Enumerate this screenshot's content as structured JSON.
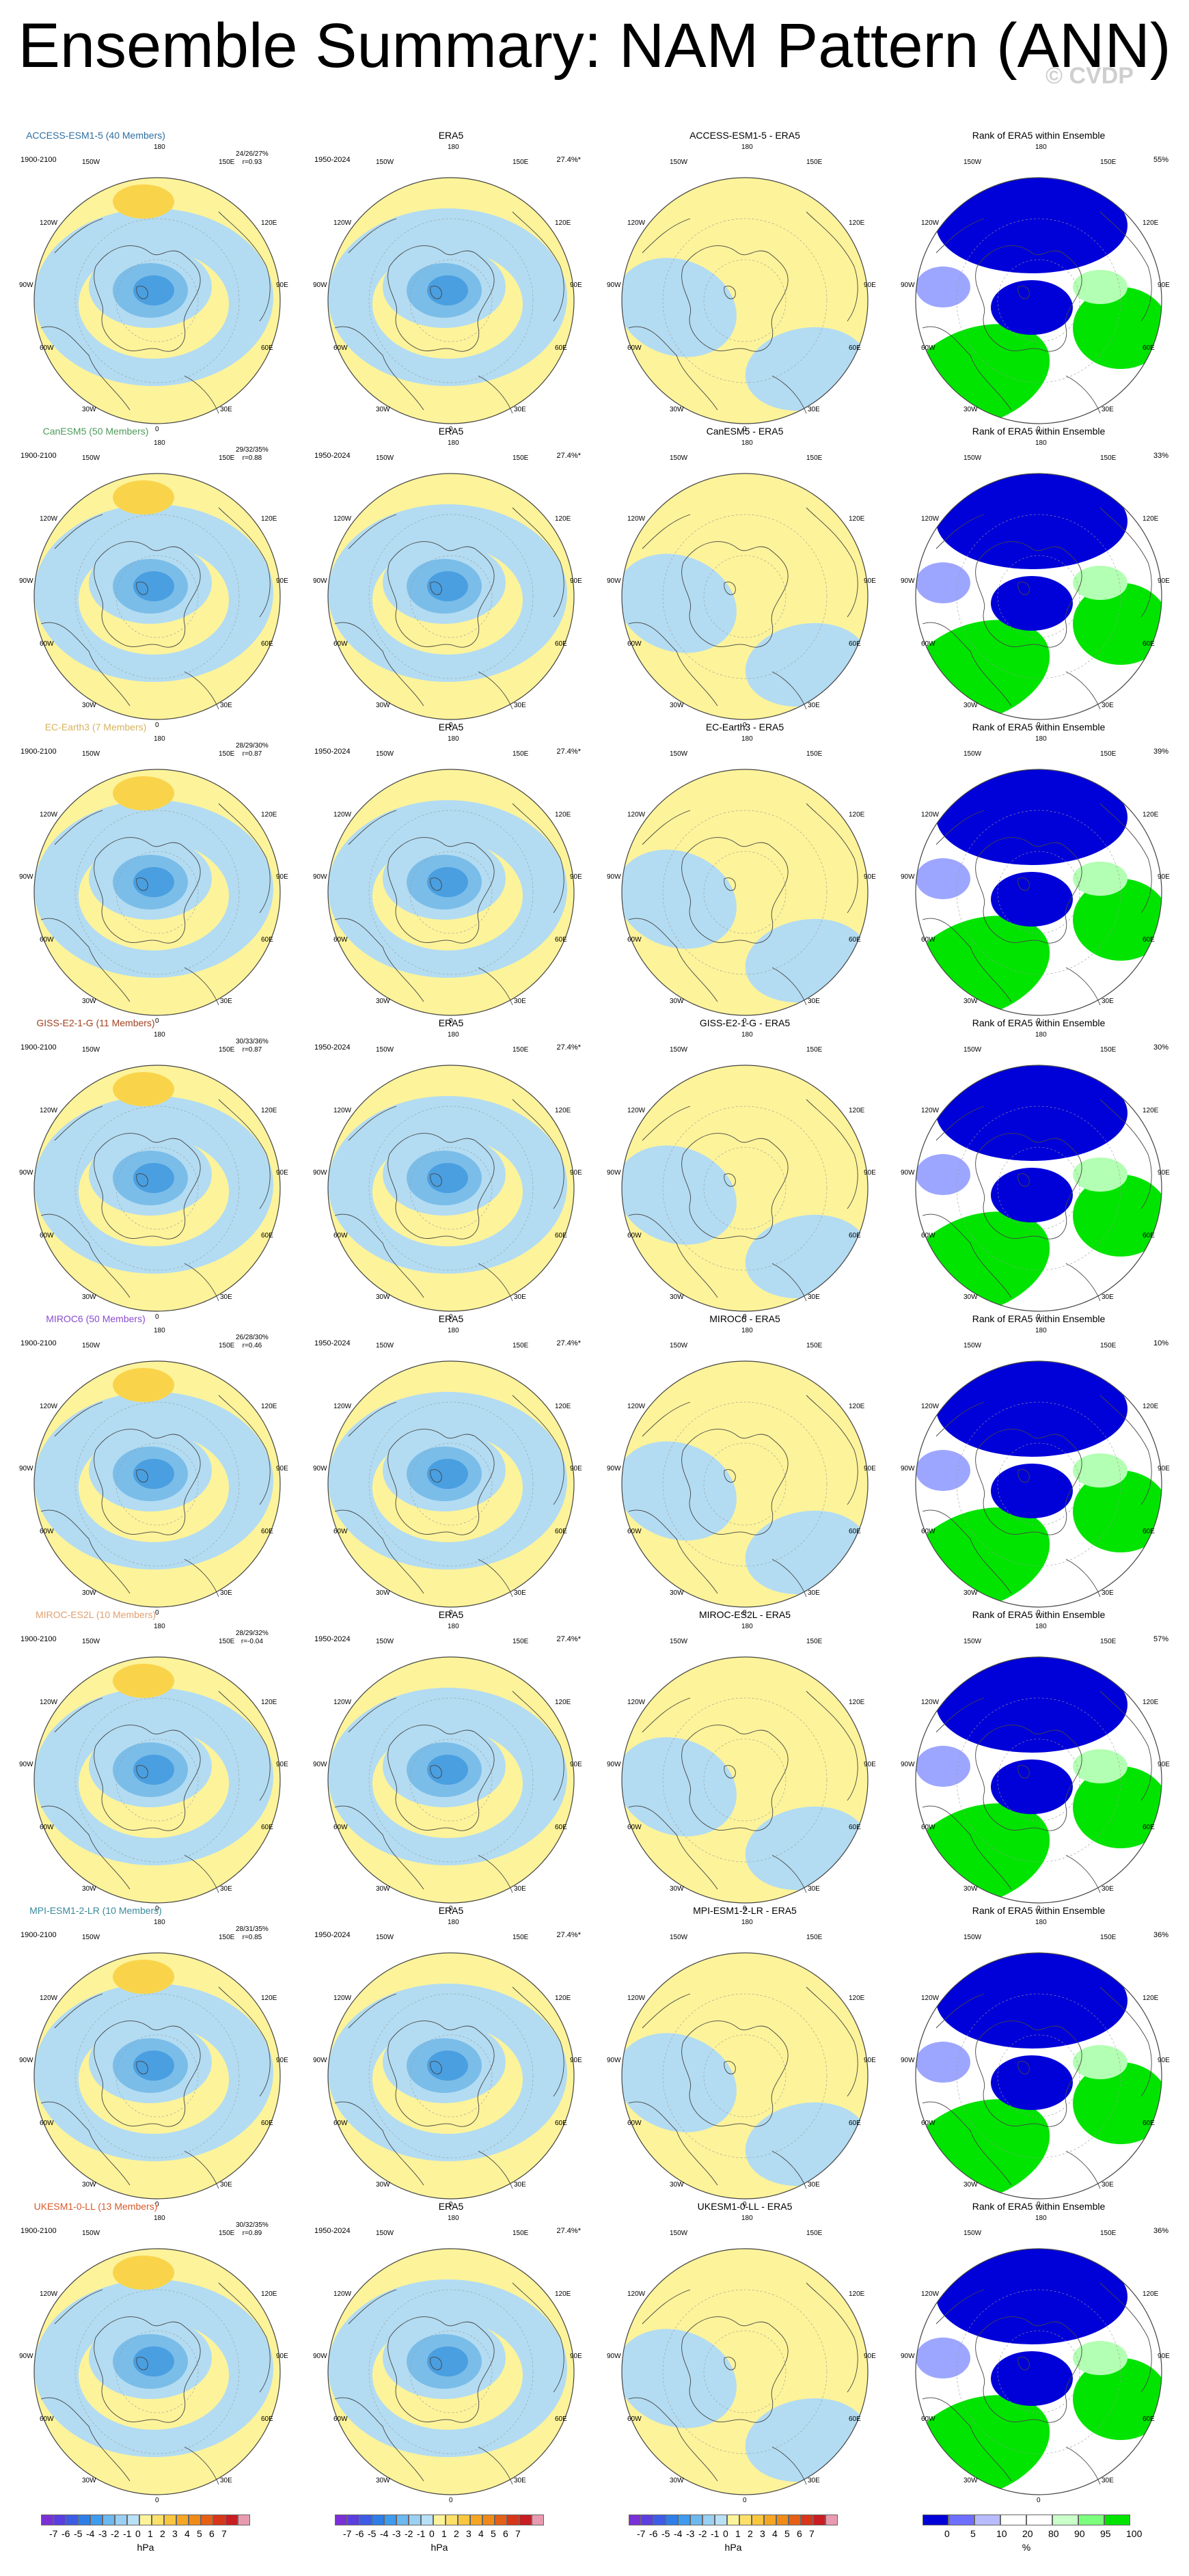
{
  "title": "Ensemble Summary: NAM Pattern (ANN)",
  "watermark": "© CVDP",
  "colors": {
    "ocean_blue": "#b3dcf2",
    "sand": "#fdf39a",
    "blue_mid": "#7bbde9",
    "blue_dark": "#4a9fe0",
    "orange_light": "#f9d44b",
    "orange_mid": "#f6a623",
    "rank_blue": "#0000d8",
    "rank_green": "#00e400",
    "rank_lightblue": "#9da6ff",
    "rank_lightgreen": "#b3ffb3"
  },
  "column_titles": {
    "era5": "ERA5",
    "rank": "Rank of ERA5 within Ensemble"
  },
  "periods": {
    "model": "1900-2100",
    "obs": "1950-2024"
  },
  "obs_variance": "27.4%*",
  "map_labels": {
    "top": "180",
    "bottom": "0",
    "left_upper": "120W",
    "left_mid": "90W",
    "left_lower": "60W",
    "right_upper": "120E",
    "right_mid": "90E",
    "right_lower": "60E",
    "top_left": "150W",
    "top_right": "150E",
    "bottom_left": "30W",
    "bottom_right": "30E"
  },
  "rows": [
    {
      "model": "ACCESS-ESM1-5 (40 Members)",
      "color": "#2f6fa0",
      "stats": "24/26/27%",
      "corr": "r=0.93",
      "diff": "ACCESS-ESM1-5 - ERA5",
      "rank_pct": "55%"
    },
    {
      "model": "CanESM5 (50 Members)",
      "color": "#4e9a5a",
      "stats": "29/32/35%",
      "corr": "r=0.88",
      "diff": "CanESM5 - ERA5",
      "rank_pct": "33%"
    },
    {
      "model": "EC-Earth3 (7 Members)",
      "color": "#d7b35e",
      "stats": "28/29/30%",
      "corr": "r=0.87",
      "diff": "EC-Earth3 - ERA5",
      "rank_pct": "39%"
    },
    {
      "model": "GISS-E2-1-G (11 Members)",
      "color": "#a0411f",
      "stats": "30/33/36%",
      "corr": "r=0.87",
      "diff": "GISS-E2-1-G - ERA5",
      "rank_pct": "30%"
    },
    {
      "model": "MIROC6 (50 Members)",
      "color": "#8a4bd0",
      "stats": "26/28/30%",
      "corr": "r=0.46",
      "diff": "MIROC6 - ERA5",
      "rank_pct": "10%"
    },
    {
      "model": "MIROC-ES2L (10 Members)",
      "color": "#e0a070",
      "stats": "28/29/32%",
      "corr": "r=-0.04",
      "diff": "MIROC-ES2L - ERA5",
      "rank_pct": "57%"
    },
    {
      "model": "MPI-ESM1-2-LR (10 Members)",
      "color": "#3a8a9c",
      "stats": "28/31/35%",
      "corr": "r=0.85",
      "diff": "MPI-ESM1-2-LR - ERA5",
      "rank_pct": "36%"
    },
    {
      "model": "UKESM1-0-LL (13 Members)",
      "color": "#d85a2a",
      "stats": "30/32/35%",
      "corr": "r=0.89",
      "diff": "UKESM1-0-LL - ERA5",
      "rank_pct": "36%"
    }
  ],
  "colorbar_hpa": {
    "labels": [
      "-7",
      "-6",
      "-5",
      "-4",
      "-3",
      "-2",
      "-1",
      "0",
      "1",
      "2",
      "3",
      "4",
      "5",
      "6",
      "7"
    ],
    "colors": [
      "#7b2fd6",
      "#5a3ee0",
      "#3d5ce6",
      "#2f7ee8",
      "#3f9bee",
      "#6cb8f0",
      "#9ad0f3",
      "#b8e0f6",
      "#fdf39a",
      "#fde06a",
      "#f9c640",
      "#f6a623",
      "#f08a18",
      "#e56016",
      "#d8361a",
      "#c81d22",
      "#e89ab0"
    ],
    "unit": "hPa"
  },
  "colorbar_rank": {
    "labels": [
      "0",
      "5",
      "10",
      "20",
      "80",
      "90",
      "95",
      "100"
    ],
    "colors": [
      "#0000d8",
      "#6e6eff",
      "#b8bcff",
      "#ffffff",
      "#ffffff",
      "#c9ffc9",
      "#7cff7c",
      "#00e400"
    ],
    "unit": "%"
  }
}
